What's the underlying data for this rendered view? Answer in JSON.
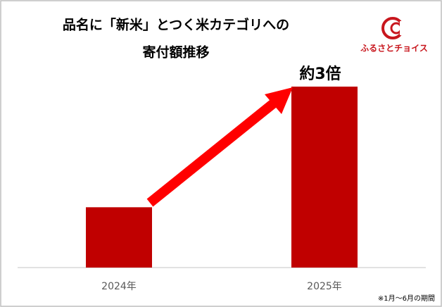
{
  "chart_data": {
    "type": "bar",
    "title": [
      "品名に「新米」とつく米カテゴリへの",
      "寄付額推移"
    ],
    "categories": [
      "2024年",
      "2025年"
    ],
    "values": [
      1,
      3
    ],
    "color": "#c00000",
    "annotation": "約3倍",
    "logo": "ふるさとチョイス",
    "footnote": "※1月～6月の期間"
  }
}
